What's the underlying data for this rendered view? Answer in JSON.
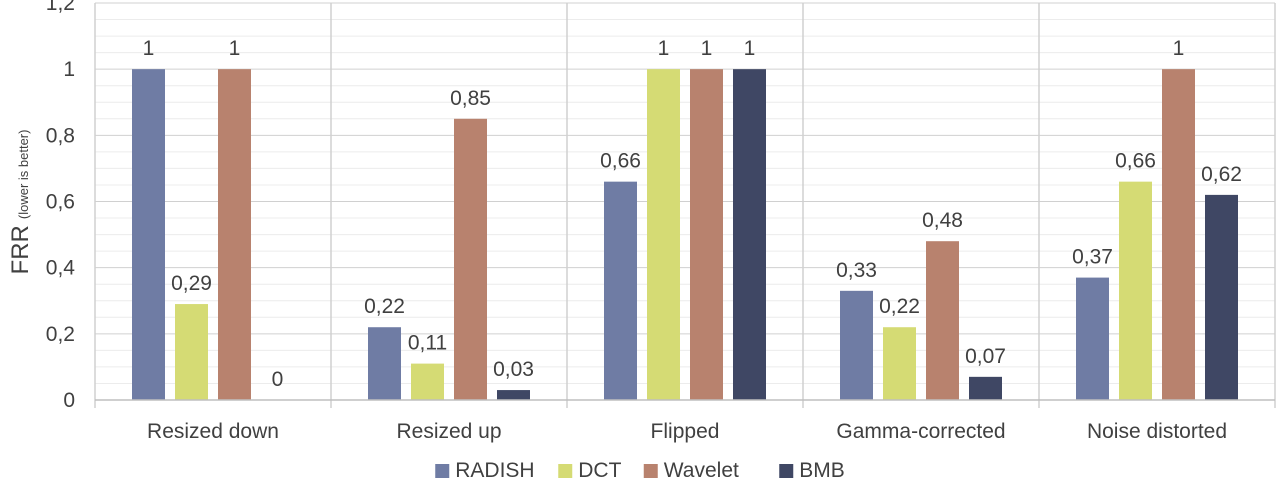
{
  "chart_data": {
    "type": "bar",
    "ylabel_main": "FRR",
    "ylabel_note": "(lower is better)",
    "ylim": [
      0,
      1.2
    ],
    "yticks": [
      "0",
      "0,2",
      "0,4",
      "0,6",
      "0,8",
      "1",
      "1,2"
    ],
    "grid": true,
    "legend_position": "bottom",
    "categories": [
      "Resized down",
      "Resized up",
      "Flipped",
      "Gamma-corrected",
      "Noise distorted"
    ],
    "series": [
      {
        "name": "RADISH",
        "color": "#6f7ca4",
        "values": [
          1,
          0.22,
          0.66,
          0.33,
          0.37
        ],
        "labels": [
          "1",
          "0,22",
          "0,66",
          "0,33",
          "0,37"
        ]
      },
      {
        "name": "DCT",
        "color": "#d5db74",
        "values": [
          0.29,
          0.11,
          1,
          0.22,
          0.66
        ],
        "labels": [
          "0,29",
          "0,11",
          "1",
          "0,22",
          "0,66"
        ]
      },
      {
        "name": "Wavelet",
        "color": "#b8826e",
        "values": [
          1,
          0.85,
          1,
          0.48,
          1
        ],
        "labels": [
          "1",
          "0,85",
          "1",
          "0,48",
          "1"
        ]
      },
      {
        "name": "BMB",
        "color": "#3f4764",
        "values": [
          0,
          0.03,
          1,
          0.07,
          0.62
        ],
        "labels": [
          "0",
          "0,03",
          "1",
          "0,07",
          "0,62"
        ]
      }
    ]
  }
}
